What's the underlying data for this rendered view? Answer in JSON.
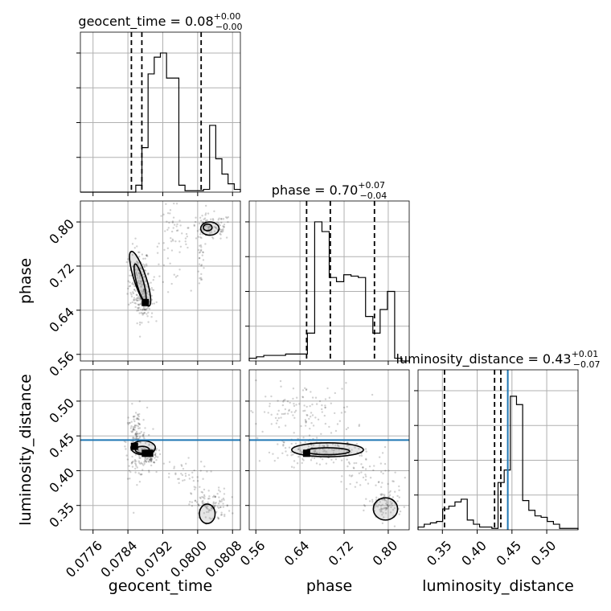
{
  "chart_data": {
    "type": "corner",
    "parameters": [
      "geocent_time",
      "phase",
      "luminosity_distance"
    ],
    "axis_labels": {
      "geocent_time": "geocent_time",
      "phase": "phase",
      "luminosity_distance": "luminosity_distance"
    },
    "ranges": {
      "geocent_time": [
        0.07731,
        0.08098
      ],
      "phase": [
        0.548,
        0.838
      ],
      "luminosity_distance": [
        0.315,
        0.545
      ]
    },
    "ticks": {
      "geocent_time": [
        {
          "v": 0.0776,
          "label": "0.0776"
        },
        {
          "v": 0.0784,
          "label": "0.0784"
        },
        {
          "v": 0.0792,
          "label": "0.0792"
        },
        {
          "v": 0.08,
          "label": "0.0800"
        },
        {
          "v": 0.0808,
          "label": "0.0808"
        }
      ],
      "phase": [
        {
          "v": 0.56,
          "label": "0.56"
        },
        {
          "v": 0.64,
          "label": "0.64"
        },
        {
          "v": 0.72,
          "label": "0.72"
        },
        {
          "v": 0.8,
          "label": "0.80"
        }
      ],
      "luminosity_distance": [
        {
          "v": 0.35,
          "label": "0.35"
        },
        {
          "v": 0.4,
          "label": "0.40"
        },
        {
          "v": 0.45,
          "label": "0.45"
        },
        {
          "v": 0.5,
          "label": "0.50"
        }
      ]
    },
    "titles": [
      {
        "name": "geocent_time",
        "value": "0.08",
        "plus": "+0.00",
        "minus": "−0.00"
      },
      {
        "name": "phase",
        "value": "0.70",
        "plus": "+0.07",
        "minus": "−0.04"
      },
      {
        "name": "luminosity_distance",
        "value": "0.43",
        "plus": "+0.01",
        "minus": "−0.07"
      }
    ],
    "quantiles": {
      "geocent_time": [
        0.07848,
        0.07872,
        0.08008
      ],
      "phase": [
        0.652,
        0.695,
        0.775
      ],
      "luminosity_distance": [
        0.353,
        0.425,
        0.434
      ]
    },
    "truths": {
      "geocent_time": null,
      "phase": null,
      "luminosity_distance": 0.444
    },
    "truth_color": "#1f77b4",
    "histograms": {
      "geocent_time": [
        0,
        0,
        0,
        0,
        0,
        0,
        0,
        0,
        0,
        0.05,
        0.32,
        0.85,
        0.97,
        1.0,
        0.82,
        0.82,
        0.05,
        0.01,
        0.01,
        0.01,
        0.02,
        0.48,
        0.24,
        0.13,
        0.06,
        0.02
      ],
      "phase": [
        0.02,
        0.03,
        0.04,
        0.04,
        0.04,
        0.05,
        0.05,
        0.05,
        0.2,
        1.0,
        0.93,
        0.6,
        0.57,
        0.62,
        0.61,
        0.6,
        0.32,
        0.2,
        0.37,
        0.5,
        0.02,
        0.0
      ],
      "luminosity_distance": [
        0.02,
        0.04,
        0.05,
        0.06,
        0.15,
        0.17,
        0.2,
        0.22,
        0.07,
        0.04,
        0.02,
        0.02,
        0.01,
        0.34,
        0.43,
        0.96,
        0.9,
        0.21,
        0.14,
        0.1,
        0.09,
        0.06,
        0.04,
        0.01,
        0.01,
        0.01
      ]
    },
    "hist_ylim": 1.15,
    "scatter_clusters": {
      "geocent_time_phase": [
        {
          "cx": 0.07865,
          "cy": 0.695,
          "sx": 0.00012,
          "sy": 0.03,
          "n": 160
        },
        {
          "cx": 0.07878,
          "cy": 0.66,
          "sx": 0.0001,
          "sy": 0.02,
          "n": 120
        },
        {
          "cx": 0.0794,
          "cy": 0.765,
          "sx": 0.0002,
          "sy": 0.035,
          "n": 60
        },
        {
          "cx": 0.0803,
          "cy": 0.79,
          "sx": 0.00025,
          "sy": 0.012,
          "n": 110
        },
        {
          "cx": 0.08008,
          "cy": 0.74,
          "sx": 4e-05,
          "sy": 0.03,
          "n": 30
        }
      ],
      "geocent_time_luminosity_distance": [
        {
          "cx": 0.0786,
          "cy": 0.44,
          "sx": 0.00012,
          "sy": 0.025,
          "n": 170
        },
        {
          "cx": 0.0789,
          "cy": 0.423,
          "sx": 0.0001,
          "sy": 0.008,
          "n": 100
        },
        {
          "cx": 0.0796,
          "cy": 0.395,
          "sx": 0.0003,
          "sy": 0.01,
          "n": 40
        },
        {
          "cx": 0.0803,
          "cy": 0.35,
          "sx": 0.00022,
          "sy": 0.012,
          "n": 110
        }
      ],
      "phase_luminosity_distance": [
        {
          "cx": 0.64,
          "cy": 0.485,
          "sx": 0.05,
          "sy": 0.02,
          "n": 130
        },
        {
          "cx": 0.68,
          "cy": 0.428,
          "sx": 0.04,
          "sy": 0.008,
          "n": 170
        },
        {
          "cx": 0.76,
          "cy": 0.395,
          "sx": 0.03,
          "sy": 0.015,
          "n": 50
        },
        {
          "cx": 0.795,
          "cy": 0.35,
          "sx": 0.015,
          "sy": 0.012,
          "n": 100
        }
      ]
    },
    "contours": {
      "geocent_time_phase": [
        {
          "cx": 0.07868,
          "cy": 0.697,
          "rx": 0.00014,
          "ry": 0.052,
          "rot": -18
        },
        {
          "cx": 0.07868,
          "cy": 0.69,
          "rx": 8e-05,
          "ry": 0.035,
          "rot": -15
        },
        {
          "cx": 0.08028,
          "cy": 0.788,
          "rx": 0.00021,
          "ry": 0.012,
          "rot": 0
        },
        {
          "cx": 0.08023,
          "cy": 0.79,
          "rx": 0.0001,
          "ry": 0.006,
          "rot": 0
        }
      ],
      "geocent_time_luminosity_distance": [
        {
          "cx": 0.07875,
          "cy": 0.433,
          "rx": 0.00028,
          "ry": 0.01,
          "rot": 0
        },
        {
          "cx": 0.07873,
          "cy": 0.43,
          "rx": 0.00016,
          "ry": 0.005,
          "rot": 0
        },
        {
          "cx": 0.08022,
          "cy": 0.338,
          "rx": 0.00018,
          "ry": 0.014,
          "rot": 0
        }
      ],
      "phase_luminosity_distance": [
        {
          "cx": 0.69,
          "cy": 0.43,
          "rx": 0.065,
          "ry": 0.01,
          "rot": 0
        },
        {
          "cx": 0.69,
          "cy": 0.428,
          "rx": 0.04,
          "ry": 0.005,
          "rot": 0
        },
        {
          "cx": 0.795,
          "cy": 0.345,
          "rx": 0.022,
          "ry": 0.016,
          "rot": 0
        }
      ]
    },
    "dense_squares": {
      "geocent_time_phase": [
        {
          "x": 0.0788,
          "y": 0.654
        }
      ],
      "geocent_time_luminosity_distance": [
        {
          "x": 0.07855,
          "y": 0.435
        },
        {
          "x": 0.0788,
          "y": 0.425
        },
        {
          "x": 0.0789,
          "y": 0.425
        }
      ],
      "phase_luminosity_distance": [
        {
          "x": 0.652,
          "y": 0.425
        }
      ]
    }
  }
}
